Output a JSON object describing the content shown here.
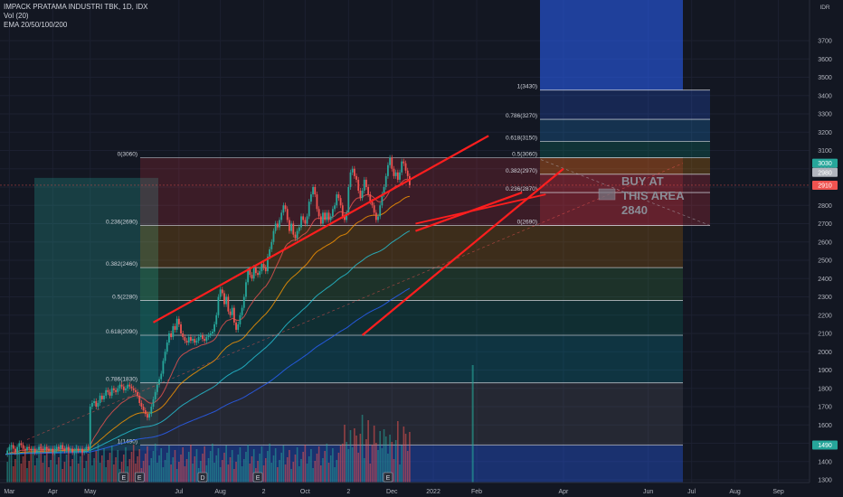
{
  "header": {
    "symbol_line": "IMPACK PRATAMA INDUSTRI TBK, 1D, IDX",
    "volume_line": "Vol (20)",
    "ema_line": "EMA 20/50/100/200"
  },
  "price_axis": {
    "currency": "IDR",
    "ticks": [
      "3700",
      "3600",
      "3500",
      "3400",
      "3300",
      "3200",
      "3100",
      "3000",
      "2900",
      "2800",
      "2700",
      "2600",
      "2500",
      "2400",
      "2300",
      "2200",
      "2100",
      "2000",
      "1900",
      "1800",
      "1700",
      "1600",
      "1500",
      "1400",
      "1300"
    ],
    "badges": [
      {
        "value": 3030,
        "label": "3030",
        "color": "#26a69a"
      },
      {
        "value": 2980,
        "label": "2980",
        "color": "#b2b5be"
      },
      {
        "value": 2910,
        "label": "2910",
        "color": "#ef5350"
      },
      {
        "value": 1490,
        "label": "1490",
        "color": "#26a69a"
      }
    ]
  },
  "time_axis": {
    "labels": [
      {
        "text": "Mar",
        "t": 2
      },
      {
        "text": "Apr",
        "t": 24
      },
      {
        "text": "May",
        "t": 43
      },
      {
        "text": "Jul",
        "t": 88
      },
      {
        "text": "Aug",
        "t": 109
      },
      {
        "text": "2",
        "t": 131
      },
      {
        "text": "Oct",
        "t": 152
      },
      {
        "text": "2",
        "t": 174
      },
      {
        "text": "Dec",
        "t": 196
      },
      {
        "text": "2022",
        "t": 217
      },
      {
        "text": "Feb",
        "t": 239
      },
      {
        "text": "Apr",
        "t": 283
      },
      {
        "text": "Jun",
        "t": 326
      },
      {
        "text": "Jul",
        "t": 348
      },
      {
        "text": "Aug",
        "t": 370
      },
      {
        "text": "Sep",
        "t": 392
      }
    ]
  },
  "annotation": {
    "lines": [
      "BUY AT",
      "THIS AREA",
      "2840"
    ]
  },
  "chart_data": {
    "type": "candlestick",
    "title": "IMPACK PRATAMA INDUSTRI TBK, 1D, IDX",
    "ylim": [
      1270,
      3880
    ],
    "fib_left": [
      {
        "label": "0(3060)",
        "value": 3060
      },
      {
        "label": "0.236(2690)",
        "value": 2690
      },
      {
        "label": "0.382(2460)",
        "value": 2460
      },
      {
        "label": "0.5(2280)",
        "value": 2280
      },
      {
        "label": "0.618(2090)",
        "value": 2090
      },
      {
        "label": "0.786(1830)",
        "value": 1830
      },
      {
        "label": "1(1490)",
        "value": 1490
      }
    ],
    "fib_right": [
      {
        "label": "1(3430)",
        "value": 3430
      },
      {
        "label": "0.786(3270)",
        "value": 3270
      },
      {
        "label": "0.618(3150)",
        "value": 3150
      },
      {
        "label": "0.5(3060)",
        "value": 3060
      },
      {
        "label": "0.382(2970)",
        "value": 2970
      },
      {
        "label": "0.236(2870)",
        "value": 2870
      },
      {
        "label": "0(2690)",
        "value": 2690
      }
    ],
    "channel": {
      "upper": [
        [
          75,
          2160
        ],
        [
          245,
          3180
        ]
      ],
      "lower": [
        [
          181,
          2090
        ],
        [
          283,
          3000
        ]
      ],
      "mid": [
        [
          208,
          2660
        ],
        [
          262,
          2870
        ]
      ]
    },
    "series": [
      {
        "name": "Price",
        "values": [
          1440,
          1460,
          1480,
          1490,
          1470,
          1450,
          1480,
          1500,
          1490,
          1470,
          1460,
          1480,
          1470,
          1460,
          1470,
          1450,
          1460,
          1480,
          1470,
          1460,
          1480,
          1470,
          1460,
          1470,
          1450,
          1460,
          1480,
          1470,
          1490,
          1470,
          1460,
          1480,
          1460,
          1470,
          1450,
          1460,
          1470,
          1460,
          1470,
          1450,
          1460,
          1480,
          1470,
          1700,
          1720,
          1730,
          1700,
          1720,
          1760,
          1740,
          1760,
          1790,
          1780,
          1760,
          1800,
          1790,
          1780,
          1800,
          1820,
          1810,
          1790,
          1800,
          1820,
          1810,
          1800,
          1790,
          1780,
          1760,
          1720,
          1700,
          1680,
          1660,
          1640,
          1660,
          1700,
          1740,
          1780,
          1820,
          1850,
          1880,
          1950,
          2000,
          2050,
          2100,
          2080,
          2140,
          2120,
          2180,
          2150,
          2100,
          2080,
          2060,
          2050,
          2080,
          2060,
          2070,
          2050,
          2060,
          2080,
          2090,
          2070,
          2060,
          2080,
          2090,
          2100,
          2110,
          2150,
          2200,
          2300,
          2340,
          2320,
          2260,
          2300,
          2220,
          2200,
          2240,
          2160,
          2120,
          2150,
          2200,
          2240,
          2300,
          2380,
          2450,
          2420,
          2400,
          2460,
          2430,
          2420,
          2440,
          2480,
          2460,
          2440,
          2520,
          2560,
          2600,
          2660,
          2700,
          2680,
          2720,
          2760,
          2800,
          2780,
          2720,
          2660,
          2700,
          2640,
          2620,
          2660,
          2680,
          2740,
          2720,
          2700,
          2740,
          2820,
          2860,
          2900,
          2860,
          2780,
          2740,
          2700,
          2760,
          2720,
          2760,
          2720,
          2740,
          2780,
          2800,
          2860,
          2840,
          2800,
          2740,
          2720,
          2760,
          2900,
          2980,
          3000,
          2960,
          2940,
          2880,
          2840,
          2880,
          2940,
          2900,
          2860,
          2820,
          2800,
          2760,
          2720,
          2740,
          2800,
          2860,
          2900,
          2960,
          3020,
          3060,
          3000,
          2960,
          2980,
          2940,
          2980,
          3040,
          3030,
          2990,
          2960,
          2910
        ]
      }
    ],
    "volume_spikes": [
      {
        "t": 237,
        "v": 1
      }
    ]
  }
}
